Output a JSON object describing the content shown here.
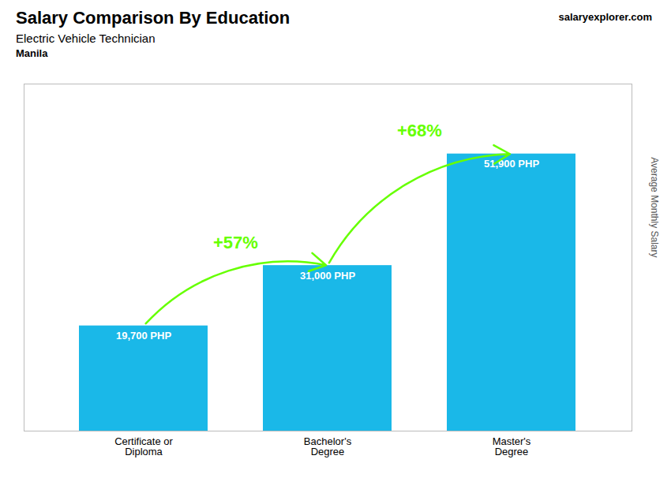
{
  "chart_data": {
    "type": "bar",
    "title": "Salary Comparison By Education",
    "subtitle": "Electric Vehicle Technician",
    "location": "Manila",
    "source": "salaryexplorer.com",
    "categories": [
      "Certificate or\nDiploma",
      "Bachelor's\nDegree",
      "Master's\nDegree"
    ],
    "values": [
      19700,
      31000,
      51900
    ],
    "value_labels": [
      "19,700 PHP",
      "31,000 PHP",
      "51,900 PHP"
    ],
    "data_labels": true,
    "color": "#1ab8e8",
    "ylabel": "Average Monthly Salary",
    "ylim": [
      0,
      65000
    ],
    "yticks": [],
    "tick_labels": "x",
    "grid": false,
    "annotations": [
      {
        "text": "+57%",
        "color": "#66ff00"
      },
      {
        "text": "+68%",
        "color": "#66ff00"
      }
    ]
  }
}
